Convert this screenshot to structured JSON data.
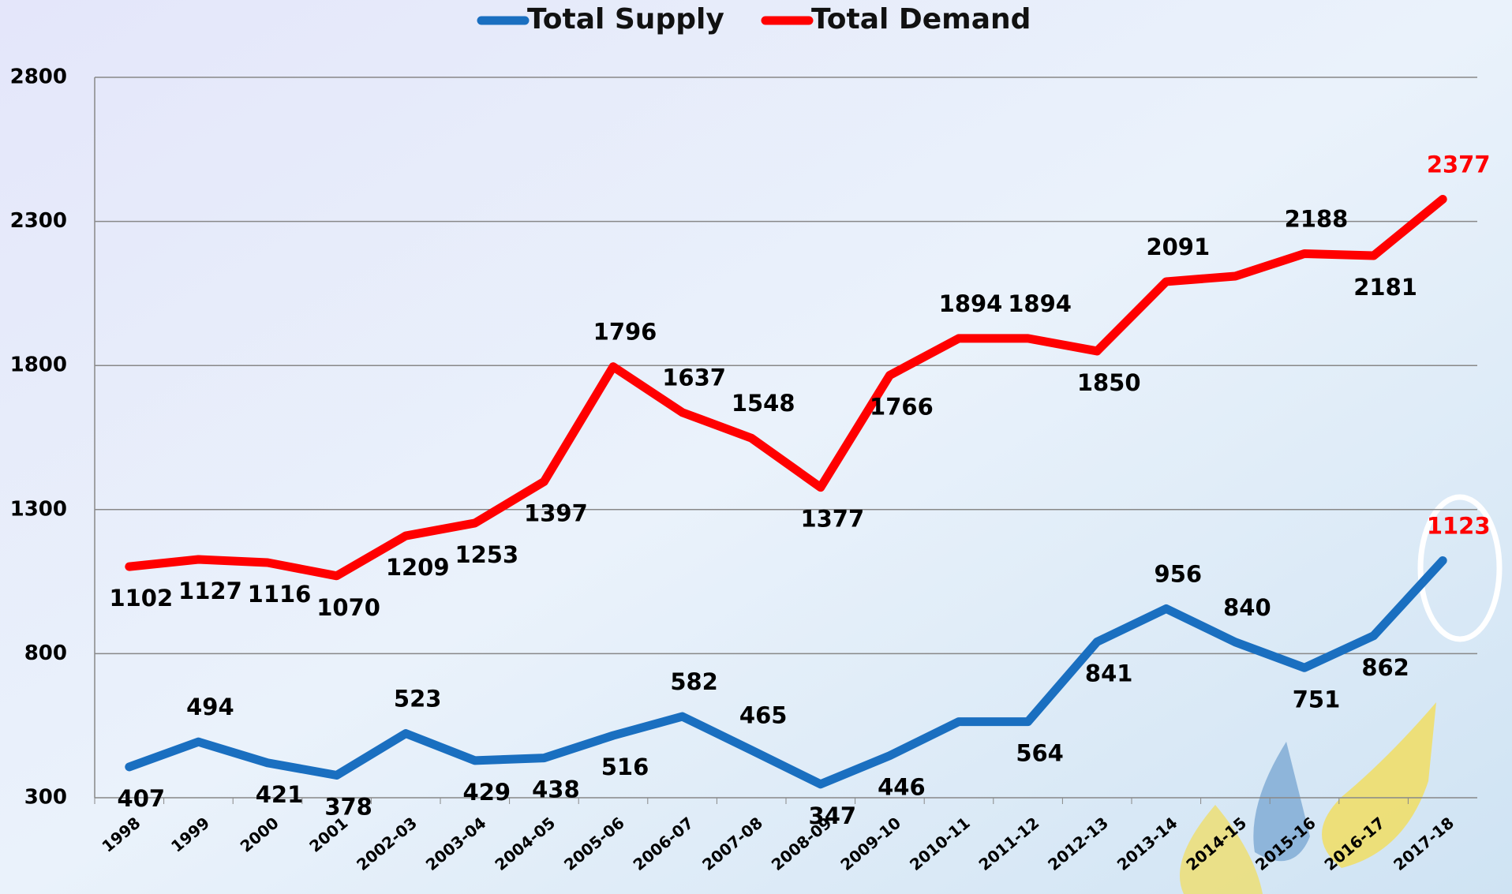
{
  "chart_data": {
    "type": "line",
    "categories": [
      "1998",
      "1999",
      "2000",
      "2001",
      "2002-03",
      "2003-04",
      "2004-05",
      "2005-06",
      "2006-07",
      "2007-08",
      "2008-09",
      "2009-10",
      "2010-11",
      "2011-12",
      "2012-13",
      "2013-14",
      "2014-15",
      "2015-16",
      "2016-17",
      "2017-18"
    ],
    "series": [
      {
        "name": "Total Supply",
        "color": "#1a6fc0",
        "values": [
          407,
          494,
          421,
          378,
          523,
          429,
          438,
          516,
          582,
          465,
          347,
          446,
          564,
          564,
          841,
          956,
          840,
          751,
          862,
          1123
        ],
        "value_labels": [
          "407",
          "494",
          "421",
          "378",
          "523",
          "429",
          "438",
          "516",
          "582",
          "465",
          "347",
          "446",
          null,
          "564",
          "841",
          "956",
          "840",
          "751",
          "862",
          "1123"
        ]
      },
      {
        "name": "Total Demand",
        "color": "#ff0000",
        "values": [
          1102,
          1127,
          1116,
          1070,
          1209,
          1253,
          1397,
          1796,
          1637,
          1548,
          1377,
          1766,
          1894,
          1894,
          1850,
          2091,
          2110,
          2188,
          2181,
          2377
        ],
        "value_labels": [
          "1102",
          "1127",
          "1116",
          "1070",
          "1209",
          "1253",
          "1397",
          "1796",
          "1637",
          "1548",
          "1377",
          "1766",
          "1894",
          "1894",
          "1850",
          "2091",
          null,
          "2188",
          "2181",
          "2377"
        ]
      }
    ],
    "last_label_color": "#ff0000",
    "ylim": [
      300,
      2800
    ],
    "yticks": [
      300,
      800,
      1300,
      1800,
      2300,
      2800
    ],
    "grid": true,
    "legend": "top"
  }
}
